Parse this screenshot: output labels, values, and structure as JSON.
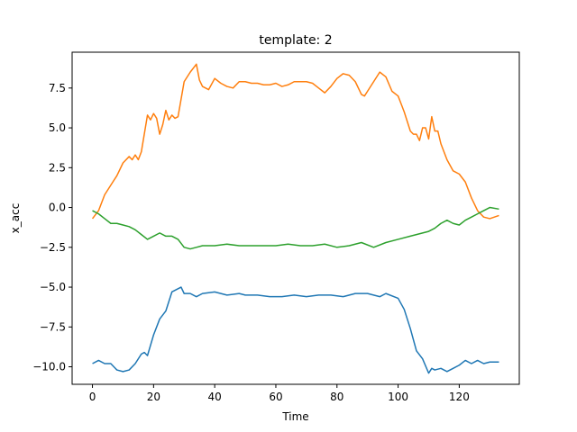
{
  "chart_data": {
    "type": "line",
    "title": "template: 2",
    "xlabel": "Time",
    "ylabel": "x_acc",
    "xlim": [
      -6.65,
      139.65
    ],
    "ylim": [
      -11.1,
      9.75
    ],
    "xticks": [
      0,
      20,
      40,
      60,
      80,
      100,
      120
    ],
    "yticks": [
      -10.0,
      -7.5,
      -5.0,
      -2.5,
      0.0,
      2.5,
      5.0,
      7.5
    ],
    "grid": false,
    "legend": "none",
    "series": [
      {
        "color": "#1f77b4",
        "x": [
          0,
          2,
          4,
          6,
          8,
          10,
          12,
          14,
          16,
          17,
          18,
          20,
          22,
          24,
          26,
          28,
          29,
          30,
          32,
          34,
          36,
          40,
          44,
          48,
          50,
          54,
          58,
          62,
          66,
          70,
          74,
          78,
          82,
          86,
          90,
          94,
          96,
          100,
          102,
          104,
          106,
          108,
          110,
          111,
          112,
          114,
          116,
          118,
          120,
          122,
          124,
          126,
          128,
          130,
          133
        ],
        "y": [
          -9.8,
          -9.6,
          -9.8,
          -9.8,
          -10.2,
          -10.3,
          -10.2,
          -9.8,
          -9.2,
          -9.1,
          -9.3,
          -8.0,
          -7.0,
          -6.5,
          -5.3,
          -5.1,
          -5.0,
          -5.4,
          -5.4,
          -5.6,
          -5.4,
          -5.3,
          -5.5,
          -5.4,
          -5.5,
          -5.5,
          -5.6,
          -5.6,
          -5.5,
          -5.6,
          -5.5,
          -5.5,
          -5.6,
          -5.4,
          -5.4,
          -5.6,
          -5.4,
          -5.7,
          -6.4,
          -7.6,
          -9.0,
          -9.5,
          -10.4,
          -10.1,
          -10.2,
          -10.1,
          -10.3,
          -10.1,
          -9.9,
          -9.6,
          -9.8,
          -9.6,
          -9.8,
          -9.7,
          -9.7
        ]
      },
      {
        "color": "#ff7f0e",
        "x": [
          0,
          2,
          4,
          6,
          8,
          10,
          12,
          13,
          14,
          15,
          16,
          18,
          19,
          20,
          21,
          22,
          23,
          24,
          25,
          26,
          27,
          28,
          30,
          32,
          34,
          35,
          36,
          38,
          40,
          42,
          44,
          46,
          48,
          50,
          52,
          54,
          56,
          58,
          60,
          62,
          64,
          66,
          68,
          70,
          72,
          74,
          76,
          78,
          80,
          82,
          84,
          86,
          88,
          89,
          90,
          92,
          94,
          96,
          98,
          100,
          101,
          102,
          104,
          105,
          106,
          107,
          108,
          109,
          110,
          111,
          112,
          113,
          114,
          116,
          118,
          120,
          122,
          124,
          126,
          128,
          130,
          133
        ],
        "y": [
          -0.7,
          -0.2,
          0.8,
          1.4,
          2.0,
          2.8,
          3.2,
          3.0,
          3.3,
          3.0,
          3.5,
          5.8,
          5.5,
          5.9,
          5.6,
          4.6,
          5.2,
          6.1,
          5.5,
          5.8,
          5.6,
          5.7,
          7.9,
          8.5,
          9.0,
          8.0,
          7.6,
          7.4,
          8.1,
          7.8,
          7.6,
          7.5,
          7.9,
          7.9,
          7.8,
          7.8,
          7.7,
          7.7,
          7.8,
          7.6,
          7.7,
          7.9,
          7.9,
          7.9,
          7.8,
          7.5,
          7.2,
          7.6,
          8.1,
          8.4,
          8.3,
          7.9,
          7.1,
          7.0,
          7.3,
          7.9,
          8.5,
          8.2,
          7.3,
          7.0,
          6.5,
          6.0,
          4.8,
          4.6,
          4.6,
          4.2,
          5.0,
          5.0,
          4.3,
          5.7,
          4.8,
          4.8,
          4.0,
          3.0,
          2.3,
          2.1,
          1.6,
          0.6,
          -0.2,
          -0.6,
          -0.7,
          -0.5
        ]
      },
      {
        "color": "#2ca02c",
        "x": [
          0,
          2,
          4,
          6,
          8,
          10,
          12,
          14,
          16,
          18,
          20,
          22,
          24,
          26,
          28,
          30,
          32,
          34,
          36,
          38,
          40,
          44,
          48,
          52,
          56,
          60,
          64,
          68,
          72,
          76,
          80,
          84,
          88,
          92,
          96,
          100,
          104,
          108,
          110,
          112,
          114,
          116,
          118,
          120,
          122,
          124,
          126,
          128,
          130,
          133
        ],
        "y": [
          -0.2,
          -0.4,
          -0.7,
          -1.0,
          -1.0,
          -1.1,
          -1.2,
          -1.4,
          -1.7,
          -2.0,
          -1.8,
          -1.6,
          -1.8,
          -1.8,
          -2.0,
          -2.5,
          -2.6,
          -2.5,
          -2.4,
          -2.4,
          -2.4,
          -2.3,
          -2.4,
          -2.4,
          -2.4,
          -2.4,
          -2.3,
          -2.4,
          -2.4,
          -2.3,
          -2.5,
          -2.4,
          -2.2,
          -2.5,
          -2.2,
          -2.0,
          -1.8,
          -1.6,
          -1.5,
          -1.3,
          -1.0,
          -0.8,
          -1.0,
          -1.1,
          -0.8,
          -0.6,
          -0.4,
          -0.2,
          -0.0,
          -0.1
        ]
      }
    ]
  }
}
